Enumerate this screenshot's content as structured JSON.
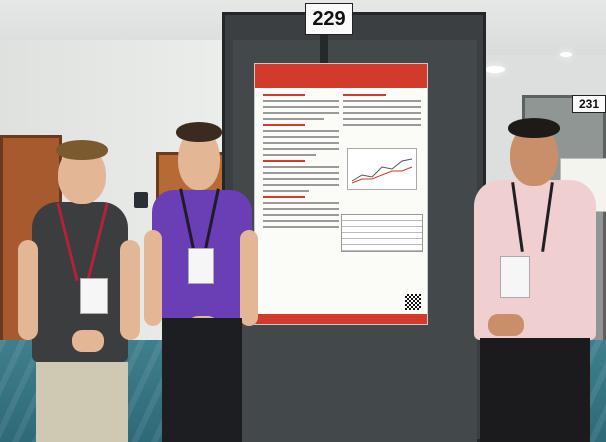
{
  "booth_numbers": {
    "main": "229",
    "neighbor": "231"
  },
  "poster": {
    "accent_color": "#d23a2b"
  },
  "shirt_text": "",
  "colors": {
    "board": "#3b3f41",
    "floor": "#2e6977",
    "purple_shirt": "#6a3fb6",
    "pink_shirt": "#f0cfd0",
    "dark_shirt": "#3b3d3f"
  }
}
